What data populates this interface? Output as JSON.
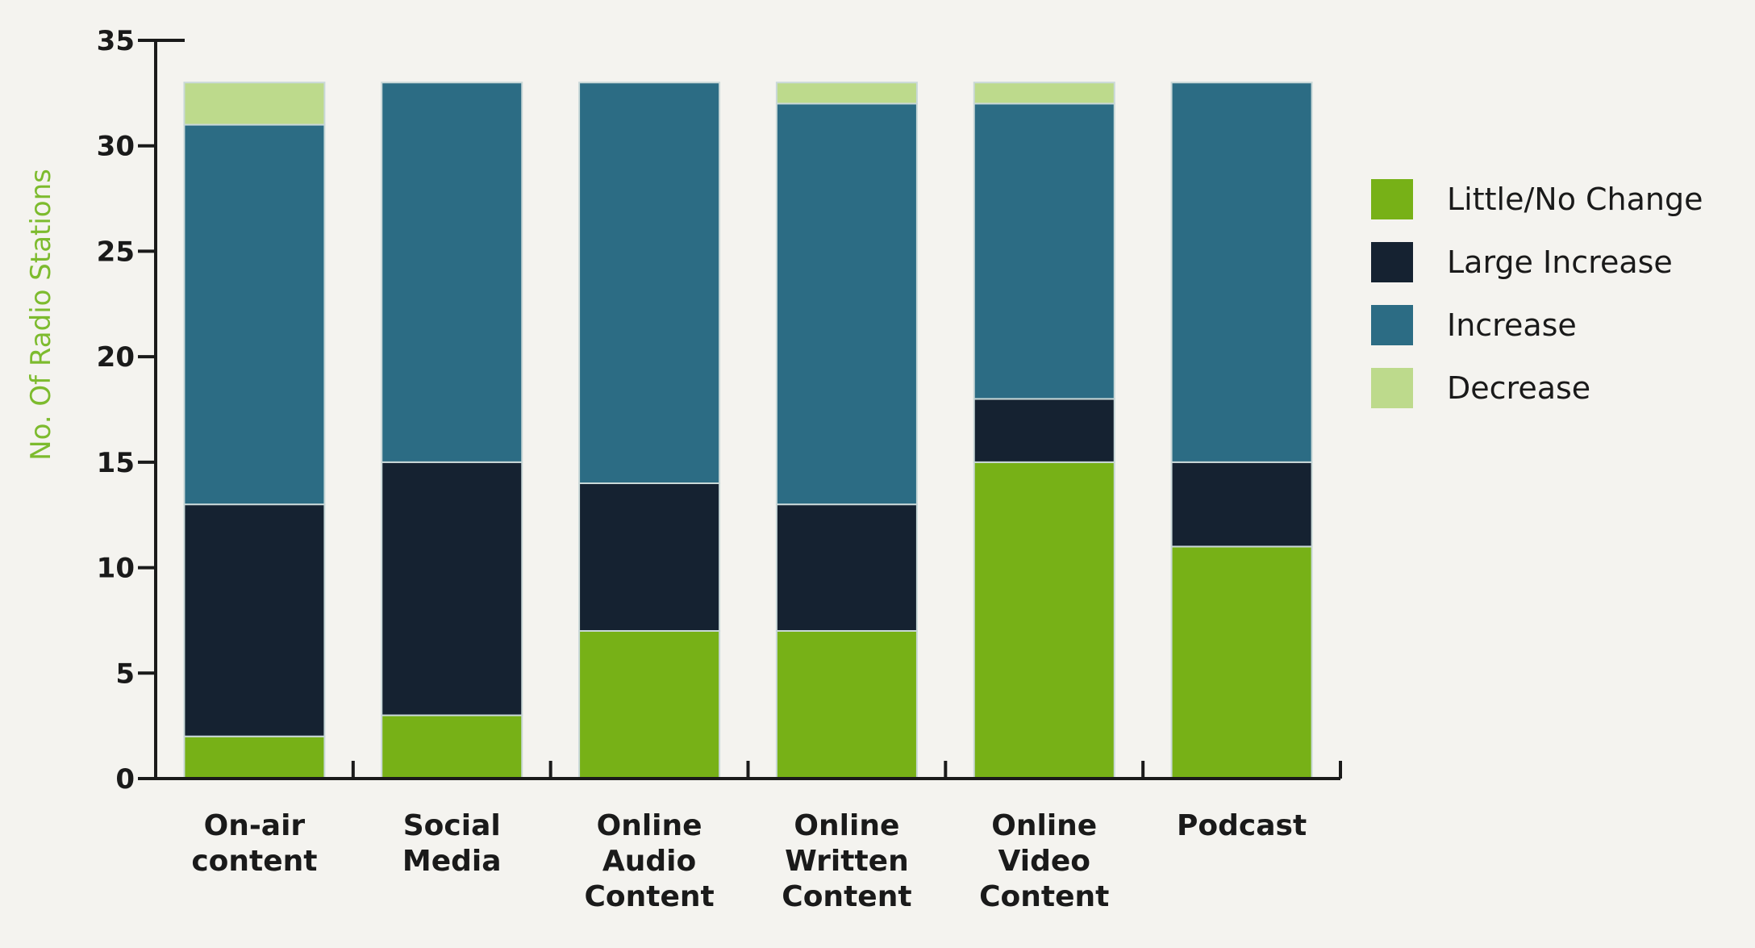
{
  "chart_data": {
    "type": "bar",
    "stacked": true,
    "categories": [
      [
        "On-air",
        "content"
      ],
      [
        "Social",
        "Media"
      ],
      [
        "Online",
        "Audio",
        "Content"
      ],
      [
        "Online",
        "Written",
        "Content"
      ],
      [
        "Online",
        "Video",
        "Content"
      ],
      [
        "Podcast"
      ]
    ],
    "series": [
      {
        "name": "Little/No Change",
        "color": "#77b117",
        "values": [
          2,
          3,
          7,
          7,
          15,
          11
        ]
      },
      {
        "name": "Large Increase",
        "color": "#152231",
        "values": [
          11,
          12,
          7,
          6,
          3,
          4
        ]
      },
      {
        "name": "Increase",
        "color": "#2c6c84",
        "values": [
          18,
          18,
          19,
          19,
          14,
          18
        ]
      },
      {
        "name": "Decrease",
        "color": "#bdda8c",
        "values": [
          2,
          0,
          0,
          1,
          1,
          0
        ]
      }
    ],
    "legend_order": [
      "Little/No Change",
      "Large Increase",
      "Increase",
      "Decrease"
    ],
    "legend_position": "right",
    "ylabel": "No. Of Radio Stations",
    "xlabel": "",
    "ylim": [
      0,
      35
    ],
    "yticks": [
      0,
      5,
      10,
      15,
      20,
      25,
      30,
      35
    ],
    "grid": false
  }
}
